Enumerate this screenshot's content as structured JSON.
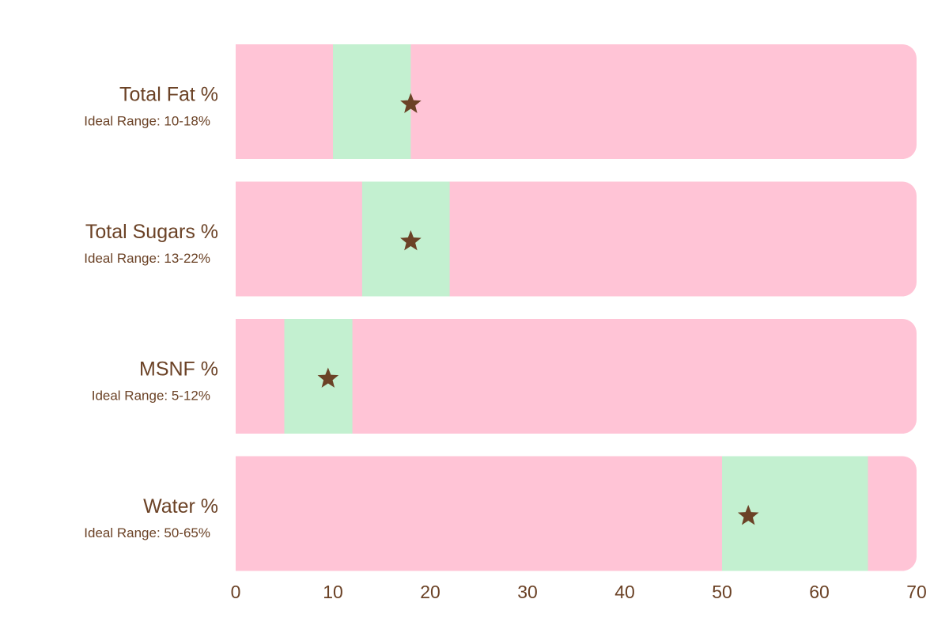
{
  "colors": {
    "track": "#ffc4d6",
    "ideal": "#c3f0d0",
    "text": "#6b4226",
    "marker": "#6b4226",
    "background": "#ffffff"
  },
  "chart_data": {
    "type": "bullet",
    "title": "",
    "xlabel": "",
    "ylabel": "",
    "xlim": [
      0,
      70
    ],
    "x_ticks": [
      0,
      10,
      20,
      30,
      40,
      50,
      60,
      70
    ],
    "grid": false,
    "legend": "none",
    "marker_symbol": "star",
    "metrics": [
      {
        "label": "Total Fat %",
        "range_label": "Ideal Range: 10-18%",
        "ideal_min": 10,
        "ideal_max": 18,
        "value": 18
      },
      {
        "label": "Total Sugars %",
        "range_label": "Ideal Range: 13-22%",
        "ideal_min": 13,
        "ideal_max": 22,
        "value": 18
      },
      {
        "label": "MSNF %",
        "range_label": "Ideal Range: 5-12%",
        "ideal_min": 5,
        "ideal_max": 12,
        "value": 9.5
      },
      {
        "label": "Water %",
        "range_label": "Ideal Range: 50-65%",
        "ideal_min": 50,
        "ideal_max": 65,
        "value": 52.7
      }
    ]
  }
}
